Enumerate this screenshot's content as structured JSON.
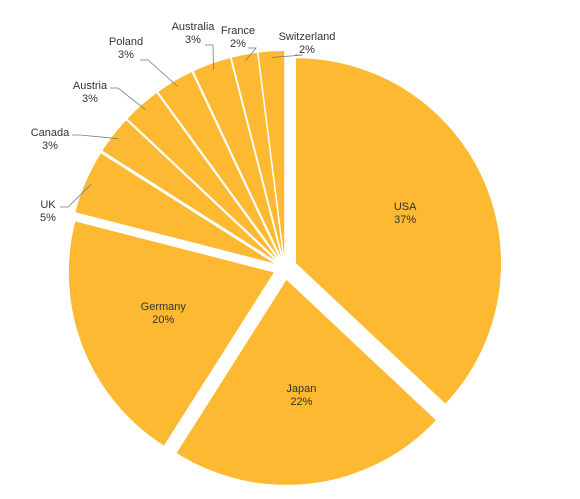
{
  "chart_data": {
    "type": "pie",
    "series": [
      {
        "values": [
          {
            "label": "USA",
            "value": 37,
            "value_label": "37%"
          },
          {
            "label": "Japan",
            "value": 22,
            "value_label": "22%"
          },
          {
            "label": "Germany",
            "value": 20,
            "value_label": "20%"
          },
          {
            "label": "UK",
            "value": 5,
            "value_label": "5%"
          },
          {
            "label": "Canada",
            "value": 3,
            "value_label": "3%"
          },
          {
            "label": "Austria",
            "value": 3,
            "value_label": "3%"
          },
          {
            "label": "Poland",
            "value": 3,
            "value_label": "3%"
          },
          {
            "label": "Australia",
            "value": 3,
            "value_label": "3%"
          },
          {
            "label": "France",
            "value": 2,
            "value_label": "2%"
          },
          {
            "label": "Switzerland",
            "value": 2,
            "value_label": "2%"
          }
        ]
      }
    ],
    "title": "",
    "legend": "none",
    "exploded": true,
    "slice_color": "#fdb931",
    "label_color": "#333333"
  }
}
